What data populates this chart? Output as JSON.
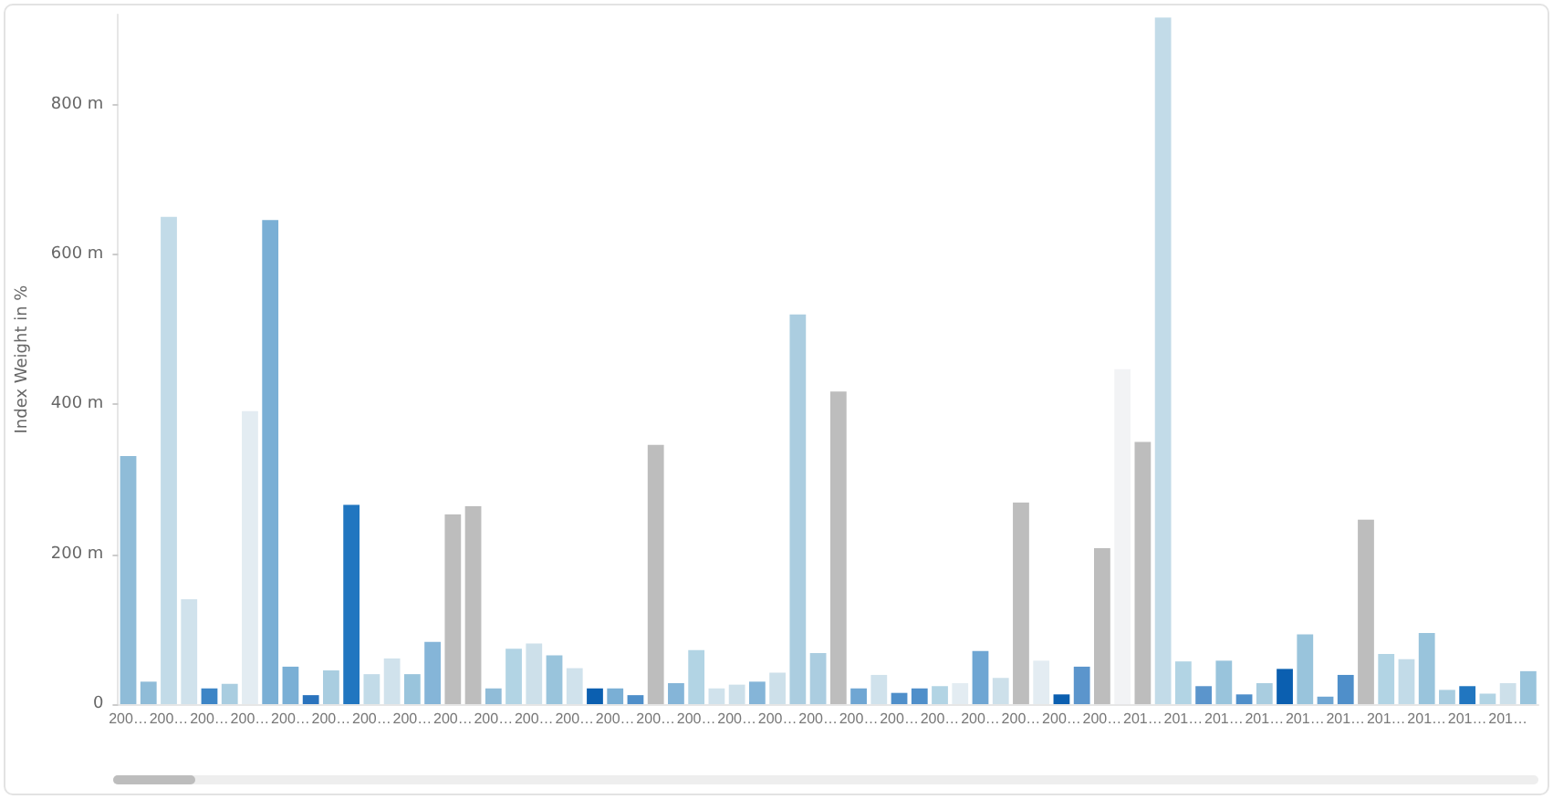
{
  "chart_data": {
    "type": "bar",
    "ylabel": "Index Weight in %",
    "categories": [
      "200…",
      null,
      "200…",
      null,
      "200…",
      null,
      "200…",
      null,
      "200…",
      null,
      "200…",
      null,
      "200…",
      null,
      "200…",
      null,
      "200…",
      null,
      "200…",
      null,
      "200…",
      null,
      "200…",
      null,
      "200…",
      null,
      "200…",
      null,
      "200…",
      null,
      "200…",
      null,
      "200…",
      null,
      "200…",
      null,
      "200…",
      null,
      "200…",
      null,
      "200…",
      null,
      "200…",
      null,
      "200…",
      null,
      "200…",
      null,
      "200…",
      null,
      "201…",
      null,
      "201…",
      null,
      "201…",
      null,
      "201…",
      null,
      "201…",
      null,
      "201…",
      null,
      "201…",
      null,
      "201…",
      null,
      "201…",
      null,
      "201…",
      null
    ],
    "values": [
      331,
      30,
      650,
      140,
      21,
      27,
      391,
      646,
      50,
      12,
      45,
      266,
      40,
      61,
      40,
      83,
      253,
      264,
      21,
      74,
      81,
      65,
      48,
      21,
      21,
      12,
      346,
      28,
      72,
      21,
      26,
      30,
      42,
      520,
      68,
      417,
      21,
      39,
      15,
      21,
      24,
      28,
      71,
      35,
      269,
      58,
      13,
      50,
      208,
      447,
      350,
      916,
      57,
      24,
      58,
      13,
      28,
      47,
      93,
      10,
      39,
      246,
      67,
      60,
      95,
      19,
      24,
      14,
      28,
      44
    ],
    "colors": [
      "#8fbcd8",
      "#8fbcd8",
      "#c2dbe8",
      "#d0e2ec",
      "#3d85c6",
      "#a9cde0",
      "#e3ecf2",
      "#7aafd5",
      "#7aafd5",
      "#2a73bd",
      "#a9cde0",
      "#2176c0",
      "#c2dbe8",
      "#d0e2ec",
      "#99c4dc",
      "#85b5d8",
      "#bdbdbd",
      "#bdbdbd",
      "#90bcd8",
      "#b2d4e4",
      "#cde0ea",
      "#99c4dc",
      "#d0e2ec",
      "#0b5fb0",
      "#7aafd5",
      "#4f8fca",
      "#bdbdbd",
      "#85b5d8",
      "#b2d4e4",
      "#d0e2ec",
      "#cde0ea",
      "#85b5d8",
      "#cde0ea",
      "#abcde0",
      "#abcde0",
      "#bdbdbd",
      "#6fa6d3",
      "#d0e2ec",
      "#4f8fca",
      "#4f8fca",
      "#b2d4e4",
      "#e3ecf2",
      "#6fa6d3",
      "#cde0ea",
      "#bdbdbd",
      "#e3ecf2",
      "#0b5fb0",
      "#5b95cc",
      "#bdbdbd",
      "#f2f3f5",
      "#bdbdbd",
      "#c2dbe8",
      "#b2d4e4",
      "#5b95cc",
      "#99c4dc",
      "#4f8fca",
      "#a9cde0",
      "#0b5fb0",
      "#99c4dc",
      "#6fa6d3",
      "#4f8fca",
      "#bdbdbd",
      "#b2d4e4",
      "#c2dbe8",
      "#99c4dc",
      "#a9cde0",
      "#2176c0",
      "#b2d4e4",
      "#cde0ea",
      "#99c4dc"
    ],
    "ylim": [
      0,
      920
    ],
    "yticks": [
      0,
      {
        "value": 200,
        "label": "200 m"
      },
      {
        "value": 400,
        "label": "400 m"
      },
      {
        "value": 600,
        "label": "600 m"
      },
      {
        "value": 800,
        "label": "800 m"
      }
    ],
    "grid": false
  }
}
